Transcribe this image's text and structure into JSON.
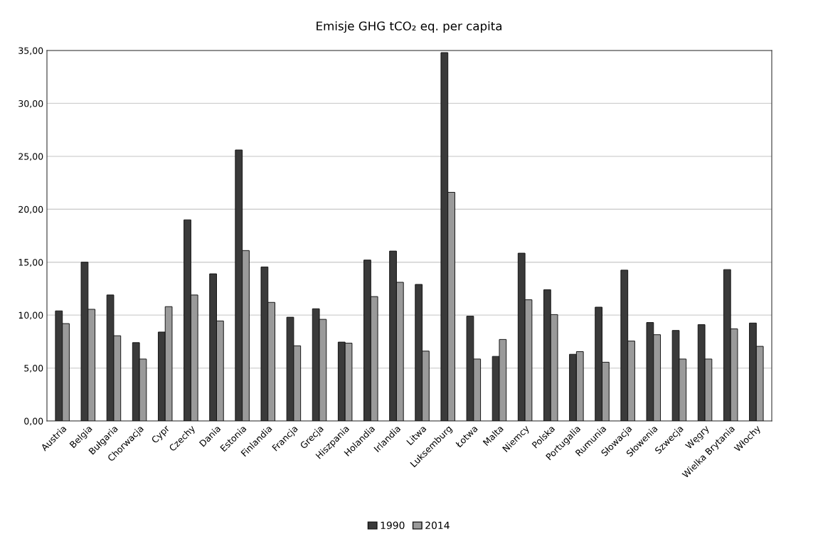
{
  "chart_data": {
    "type": "bar",
    "title": "Emisje GHG tCO₂ eq. per capita",
    "categories": [
      "Austria",
      "Belgia",
      "Bułgaria",
      "Chorwacja",
      "Cypr",
      "Czechy",
      "Dania",
      "Estonia",
      "Finlandia",
      "Francja",
      "Grecja",
      "Hiszpania",
      "Holandia",
      "Irlandia",
      "Litwa",
      "Luksemburg",
      "Łotwa",
      "Malta",
      "Niemcy",
      "Polska",
      "Portugalia",
      "Rumunia",
      "Słowacja",
      "Słowenia",
      "Szwecja",
      "Węgry",
      "Wielka Brytania",
      "Włochy"
    ],
    "series": [
      {
        "name": "1990",
        "color": "#3a3a3a",
        "values": [
          10.4,
          15.0,
          11.9,
          7.4,
          8.4,
          19.0,
          13.9,
          25.6,
          14.55,
          9.8,
          10.6,
          7.45,
          15.2,
          16.05,
          12.9,
          34.8,
          9.9,
          6.1,
          15.85,
          12.4,
          6.3,
          10.75,
          14.25,
          9.3,
          8.55,
          9.1,
          14.3,
          9.25
        ]
      },
      {
        "name": "2014",
        "color": "#9a9a9a",
        "values": [
          9.2,
          10.55,
          8.05,
          5.85,
          10.8,
          11.9,
          9.45,
          16.1,
          11.2,
          7.1,
          9.6,
          7.35,
          11.75,
          13.1,
          6.6,
          21.6,
          5.85,
          7.7,
          11.45,
          10.05,
          6.55,
          5.55,
          7.55,
          8.15,
          5.85,
          5.85,
          8.7,
          7.05
        ]
      }
    ],
    "ylim": [
      0,
      35
    ],
    "yticks": [
      {
        "value": 0,
        "label": "0,00"
      },
      {
        "value": 5,
        "label": "5,00"
      },
      {
        "value": 10,
        "label": "10,00"
      },
      {
        "value": 15,
        "label": "15,00"
      },
      {
        "value": 20,
        "label": "20,00"
      },
      {
        "value": 25,
        "label": "25,00"
      },
      {
        "value": 30,
        "label": "30,00"
      },
      {
        "value": 35,
        "label": "35,00"
      }
    ],
    "grid": "y",
    "legend": "bottom"
  }
}
